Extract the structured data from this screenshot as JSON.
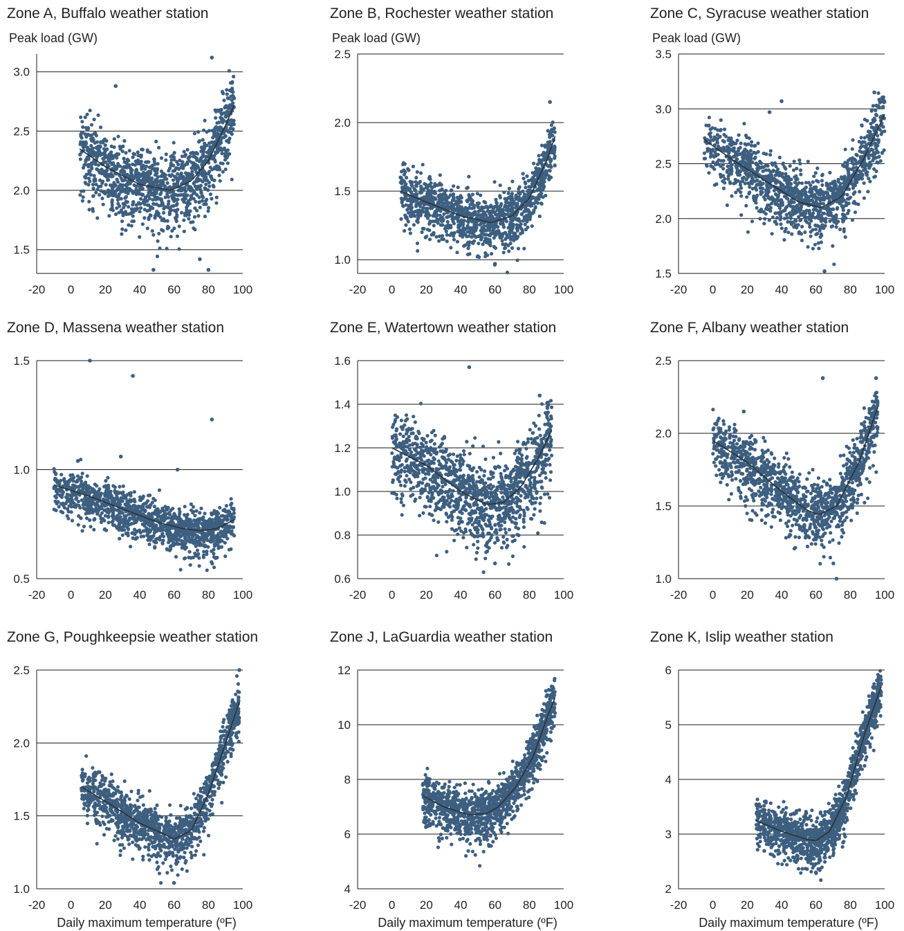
{
  "colors": {
    "points": "#3d5f80",
    "trend": "#2b3136",
    "grid": "#1a1a1a",
    "text": "#222222"
  },
  "xlabel": "Daily maximum temperature (ºF)",
  "chart_data": [
    {
      "type": "scatter",
      "title": "Zone A, Buffalo weather station",
      "ylabel": "Peak load (GW)",
      "xlim": [
        -20,
        100
      ],
      "ylim": [
        1.3,
        3.15
      ],
      "xticks": [
        "-20",
        "0",
        "20",
        "40",
        "60",
        "80",
        "100"
      ],
      "yticks": [
        "1.5",
        "2.0",
        "2.5",
        "3.0"
      ],
      "ytick_values": [
        1.5,
        2.0,
        2.5,
        3.0
      ],
      "trend": {
        "x": [
          5,
          20,
          40,
          58,
          70,
          80,
          90,
          95
        ],
        "y": [
          2.35,
          2.2,
          2.05,
          2.0,
          2.08,
          2.25,
          2.55,
          2.72
        ]
      },
      "spread": 0.16,
      "outliers": {
        "x": [
          26,
          82,
          48,
          80,
          75
        ],
        "y": [
          2.88,
          3.12,
          1.33,
          1.33,
          1.42
        ]
      }
    },
    {
      "type": "scatter",
      "title": "Zone B, Rochester weather station",
      "ylabel": "Peak load (GW)",
      "xlim": [
        -20,
        100
      ],
      "ylim": [
        0.9,
        2.5
      ],
      "xticks": [
        "-20",
        "0",
        "20",
        "40",
        "60",
        "80",
        "100"
      ],
      "yticks": [
        "1.0",
        "1.5",
        "2.0",
        "2.5"
      ],
      "ytick_values": [
        1.0,
        1.5,
        2.0,
        2.5
      ],
      "trend": {
        "x": [
          5,
          20,
          40,
          58,
          70,
          80,
          90,
          95
        ],
        "y": [
          1.5,
          1.42,
          1.32,
          1.27,
          1.32,
          1.45,
          1.72,
          1.9
        ]
      },
      "spread": 0.1,
      "outliers": {
        "x": [
          5,
          60,
          92
        ],
        "y": [
          1.6,
          0.97,
          2.15
        ]
      }
    },
    {
      "type": "scatter",
      "title": "Zone C, Syracuse weather station",
      "ylabel": "Peak load (GW)",
      "xlim": [
        -20,
        100
      ],
      "ylim": [
        1.5,
        3.5
      ],
      "xticks": [
        "-20",
        "0",
        "20",
        "40",
        "60",
        "80",
        "100"
      ],
      "yticks": [
        "1.5",
        "2.0",
        "2.5",
        "3.0",
        "3.5"
      ],
      "ytick_values": [
        1.5,
        2.0,
        2.5,
        3.0,
        3.5
      ],
      "trend": {
        "x": [
          -5,
          10,
          30,
          50,
          63,
          75,
          88,
          100
        ],
        "y": [
          2.72,
          2.55,
          2.35,
          2.15,
          2.1,
          2.2,
          2.55,
          2.95
        ]
      },
      "spread": 0.15,
      "outliers": {
        "x": [
          40,
          33,
          65,
          94
        ],
        "y": [
          3.07,
          2.97,
          1.52,
          3.15
        ]
      }
    },
    {
      "type": "scatter",
      "title": "Zone D, Massena weather station",
      "ylabel": "",
      "xlim": [
        -20,
        100
      ],
      "ylim": [
        0.5,
        1.5
      ],
      "xticks": [
        "-20",
        "0",
        "20",
        "40",
        "60",
        "80",
        "100"
      ],
      "yticks": [
        "0.5",
        "1.0",
        "1.5"
      ],
      "ytick_values": [
        0.5,
        1.0,
        1.5
      ],
      "trend": {
        "x": [
          -10,
          10,
          30,
          50,
          65,
          75,
          85,
          95
        ],
        "y": [
          0.93,
          0.88,
          0.82,
          0.76,
          0.73,
          0.72,
          0.73,
          0.77
        ]
      },
      "spread": 0.05,
      "outliers": {
        "x": [
          11,
          36,
          82,
          29,
          62,
          4
        ],
        "y": [
          1.5,
          1.43,
          1.23,
          1.06,
          1.0,
          1.04
        ]
      }
    },
    {
      "type": "scatter",
      "title": "Zone E, Watertown weather station",
      "ylabel": "",
      "xlim": [
        -20,
        100
      ],
      "ylim": [
        0.6,
        1.6
      ],
      "xticks": [
        "-20",
        "0",
        "20",
        "40",
        "60",
        "80",
        "100"
      ],
      "yticks": [
        "0.6",
        "0.8",
        "1.0",
        "1.2",
        "1.4",
        "1.6"
      ],
      "ytick_values": [
        0.6,
        0.8,
        1.0,
        1.2,
        1.4,
        1.6
      ],
      "trend": {
        "x": [
          0,
          20,
          40,
          55,
          65,
          75,
          85,
          93
        ],
        "y": [
          1.2,
          1.12,
          1.0,
          0.94,
          0.95,
          1.02,
          1.15,
          1.28
        ]
      },
      "spread": 0.1,
      "outliers": {
        "x": [
          45,
          86,
          60
        ],
        "y": [
          1.57,
          1.44,
          0.67
        ]
      }
    },
    {
      "type": "scatter",
      "title": "Zone F, Albany weather station",
      "ylabel": "",
      "xlim": [
        -20,
        100
      ],
      "ylim": [
        1.0,
        2.5
      ],
      "xticks": [
        "-20",
        "0",
        "20",
        "40",
        "60",
        "80",
        "100"
      ],
      "yticks": [
        "1.0",
        "1.5",
        "2.0",
        "2.5"
      ],
      "ytick_values": [
        1.0,
        1.5,
        2.0,
        2.5
      ],
      "trend": {
        "x": [
          0,
          20,
          40,
          55,
          62,
          72,
          85,
          96
        ],
        "y": [
          1.95,
          1.8,
          1.6,
          1.47,
          1.44,
          1.5,
          1.8,
          2.18
        ]
      },
      "spread": 0.11,
      "outliers": {
        "x": [
          64,
          18,
          72,
          95
        ],
        "y": [
          2.38,
          2.15,
          1.0,
          2.38
        ]
      }
    },
    {
      "type": "scatter",
      "title": "Zone G, Poughkeepsie weather station",
      "ylabel": "",
      "xlim": [
        -20,
        100
      ],
      "ylim": [
        1.0,
        2.5
      ],
      "xticks": [
        "-20",
        "0",
        "20",
        "40",
        "60",
        "80",
        "100"
      ],
      "yticks": [
        "1.0",
        "1.5",
        "2.0",
        "2.5"
      ],
      "ytick_values": [
        1.0,
        1.5,
        2.0,
        2.5
      ],
      "trend": {
        "x": [
          6,
          20,
          40,
          55,
          60,
          70,
          80,
          90,
          98
        ],
        "y": [
          1.7,
          1.6,
          1.45,
          1.37,
          1.34,
          1.4,
          1.65,
          2.0,
          2.28
        ]
      },
      "spread": 0.09,
      "outliers": {
        "x": [
          98,
          16,
          60
        ],
        "y": [
          2.5,
          1.8,
          1.04
        ]
      }
    },
    {
      "type": "scatter",
      "title": "Zone J, LaGuardia weather station",
      "ylabel": "",
      "xlim": [
        -20,
        100
      ],
      "ylim": [
        4,
        12
      ],
      "xticks": [
        "-20",
        "0",
        "20",
        "40",
        "60",
        "80",
        "100"
      ],
      "yticks": [
        "4",
        "6",
        "8",
        "10",
        "12"
      ],
      "ytick_values": [
        4,
        6,
        8,
        10,
        12
      ],
      "trend": {
        "x": [
          18,
          30,
          45,
          55,
          62,
          72,
          82,
          90,
          95
        ],
        "y": [
          7.4,
          7.0,
          6.7,
          6.75,
          7.0,
          7.7,
          8.8,
          10.2,
          11.0
        ]
      },
      "spread": 0.45,
      "outliers": {
        "x": [
          93,
          18
        ],
        "y": [
          11.4,
          7.8
        ]
      }
    },
    {
      "type": "scatter",
      "title": "Zone K, Islip weather station",
      "ylabel": "",
      "xlim": [
        -20,
        100
      ],
      "ylim": [
        2,
        6
      ],
      "xticks": [
        "-20",
        "0",
        "20",
        "40",
        "60",
        "80",
        "100"
      ],
      "yticks": [
        "2",
        "3",
        "4",
        "5",
        "6"
      ],
      "ytick_values": [
        2,
        3,
        4,
        5,
        6
      ],
      "trend": {
        "x": [
          25,
          40,
          55,
          60,
          68,
          78,
          88,
          98
        ],
        "y": [
          3.25,
          3.05,
          2.9,
          2.88,
          3.05,
          3.7,
          4.8,
          5.7
        ]
      },
      "spread": 0.22,
      "outliers": {
        "x": [
          98,
          60
        ],
        "y": [
          5.75,
          2.3
        ]
      }
    }
  ]
}
